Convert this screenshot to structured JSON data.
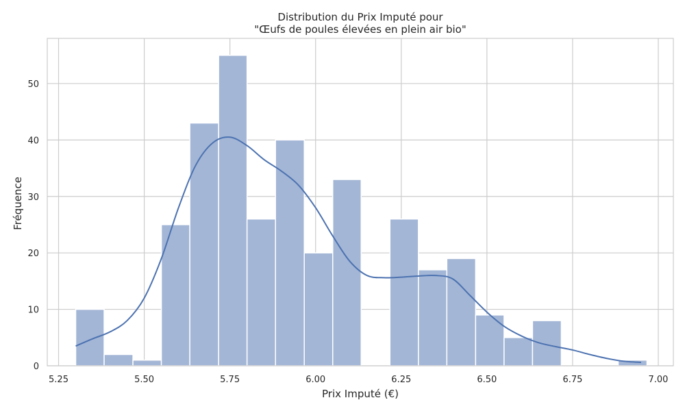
{
  "chart_data": {
    "type": "bar",
    "title_line1": "Distribution du Prix Imputé pour",
    "title_line2": "\"Œufs de poules élevées en plein air bio\"",
    "xlabel": "Prix Imputé (€)",
    "ylabel": "Fréquence",
    "xlim": [
      5.217,
      7.044
    ],
    "ylim": [
      0,
      58
    ],
    "x_ticks": [
      "5.25",
      "5.50",
      "5.75",
      "6.00",
      "6.25",
      "6.50",
      "6.75",
      "7.00"
    ],
    "y_ticks": [
      "0",
      "10",
      "20",
      "30",
      "40",
      "50"
    ],
    "grid": true,
    "bin_edges": [
      5.3,
      5.383,
      5.467,
      5.55,
      5.633,
      5.717,
      5.8,
      5.883,
      5.967,
      6.05,
      6.133,
      6.217,
      6.3,
      6.383,
      6.467,
      6.55,
      6.633,
      6.717,
      6.8,
      6.883,
      6.967
    ],
    "counts": [
      10,
      2,
      1,
      25,
      43,
      55,
      26,
      40,
      20,
      33,
      0,
      26,
      17,
      19,
      9,
      5,
      8,
      0,
      0,
      1
    ],
    "kde": {
      "x": [
        5.3,
        5.35,
        5.4,
        5.45,
        5.5,
        5.55,
        5.6,
        5.65,
        5.7,
        5.75,
        5.8,
        5.85,
        5.9,
        5.95,
        6.0,
        6.05,
        6.1,
        6.15,
        6.2,
        6.25,
        6.3,
        6.35,
        6.4,
        6.45,
        6.5,
        6.55,
        6.6,
        6.65,
        6.7,
        6.75,
        6.8,
        6.85,
        6.9,
        6.95
      ],
      "y": [
        3.5,
        4.8,
        6.0,
        8.0,
        12.0,
        19.0,
        28.0,
        35.5,
        39.5,
        40.5,
        39.0,
        36.5,
        34.5,
        32.0,
        28.0,
        23.0,
        18.5,
        16.0,
        15.6,
        15.7,
        15.9,
        16.0,
        15.4,
        12.5,
        9.5,
        7.0,
        5.3,
        4.1,
        3.4,
        2.8,
        2.0,
        1.3,
        0.8,
        0.6
      ]
    },
    "colors": {
      "bar_fill": "#a3b6d6",
      "bar_edge": "#ffffff",
      "kde_line": "#4c72b0",
      "grid": "#cccccc",
      "spine": "#cccccc"
    }
  }
}
